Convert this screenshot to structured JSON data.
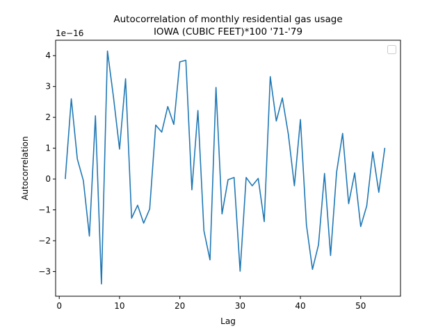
{
  "chart_data": {
    "type": "line",
    "title_lines": [
      "Autocorrelation of monthly residential gas usage",
      "IOWA (CUBIC FEET)*100 '71-'79"
    ],
    "xlabel": "Lag",
    "ylabel": "Autocorrelation",
    "y_offset_label": "1e−16",
    "xlim": [
      -0.6,
      56.6
    ],
    "ylim": [
      -3.8,
      4.5
    ],
    "x_ticks": [
      0,
      10,
      20,
      30,
      40,
      50
    ],
    "y_ticks": [
      -3,
      -2,
      -1,
      0,
      1,
      2,
      3,
      4
    ],
    "y_tick_labels": [
      "−3",
      "−2",
      "−1",
      "0",
      "1",
      "2",
      "3",
      "4"
    ],
    "grid": false,
    "legend": {
      "placement": "top-right",
      "entries": []
    },
    "line_color": "#1f77b4",
    "series": [
      {
        "x": [
          1,
          2,
          3,
          4,
          5,
          6,
          7,
          8,
          9,
          10,
          11,
          12,
          13,
          14,
          15,
          16,
          17,
          18,
          19,
          20,
          21,
          22,
          23,
          24,
          25,
          26,
          27,
          28,
          29,
          30,
          31,
          32,
          33,
          34,
          35,
          36,
          37,
          38,
          39,
          40,
          41,
          42,
          43,
          44,
          45,
          46,
          47,
          48,
          49,
          50,
          51,
          52,
          53,
          54
        ],
        "values": [
          0.0,
          2.6,
          0.65,
          -0.05,
          -1.85,
          2.05,
          -3.4,
          4.15,
          2.65,
          0.97,
          3.25,
          -1.27,
          -0.85,
          -1.43,
          -0.97,
          1.75,
          1.52,
          2.35,
          1.77,
          3.8,
          3.85,
          -0.35,
          2.22,
          -1.68,
          -2.62,
          2.97,
          -1.13,
          -0.02,
          0.05,
          -2.99,
          0.05,
          -0.22,
          0.02,
          -1.38,
          3.32,
          1.88,
          2.63,
          1.45,
          -0.22,
          1.93,
          -1.49,
          -2.93,
          -2.13,
          0.18,
          -2.48,
          0.22,
          1.48,
          -0.8,
          0.2,
          -1.54,
          -0.87,
          0.88,
          -0.43,
          1.01
        ]
      }
    ]
  }
}
